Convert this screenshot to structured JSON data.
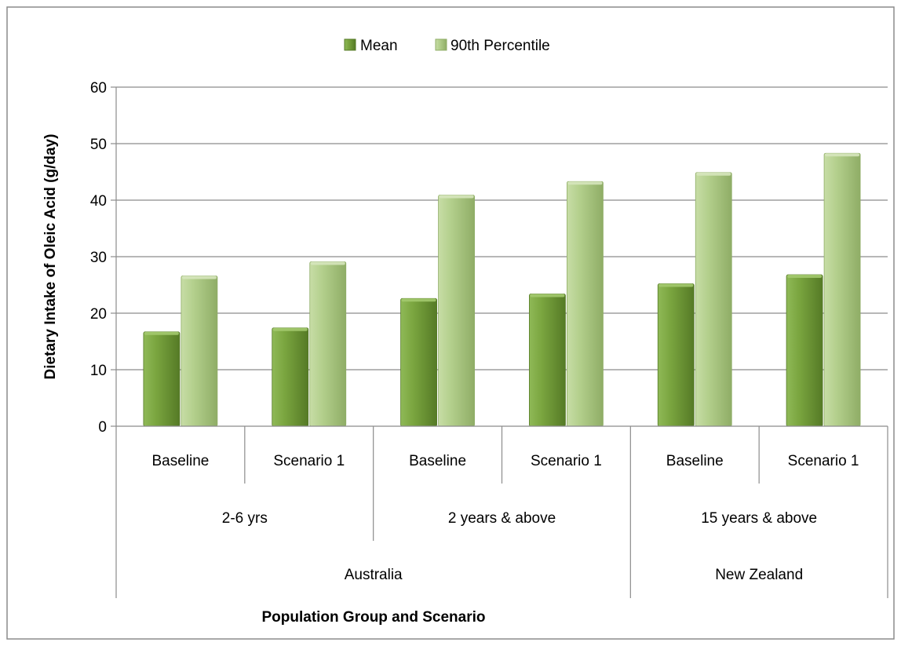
{
  "chart_data": {
    "type": "bar",
    "title": "",
    "xlabel": "Population Group and Scenario",
    "ylabel": "Dietary Intake of Oleic Acid (g/day)",
    "ylim": [
      0,
      60
    ],
    "yticks": [
      0,
      10,
      20,
      30,
      40,
      50,
      60
    ],
    "grid": true,
    "legend_position": "top-center",
    "categories": [
      "Baseline",
      "Scenario 1",
      "Baseline",
      "Scenario 1",
      "Baseline",
      "Scenario 1"
    ],
    "groups_level2": [
      {
        "label": "2-6 yrs",
        "span": 2
      },
      {
        "label": "2 years & above",
        "span": 2
      },
      {
        "label": "15 years & above",
        "span": 2
      }
    ],
    "groups_level3": [
      {
        "label": "Australia",
        "span": 4
      },
      {
        "label": "New Zealand",
        "span": 2
      }
    ],
    "series": [
      {
        "name": "Mean",
        "color": "#6f9a35",
        "values": [
          16.7,
          17.4,
          22.6,
          23.4,
          25.2,
          26.8
        ]
      },
      {
        "name": "90th Percentile",
        "color": "#a9c781",
        "values": [
          26.6,
          29.1,
          40.9,
          43.3,
          44.9,
          48.3
        ]
      }
    ]
  }
}
